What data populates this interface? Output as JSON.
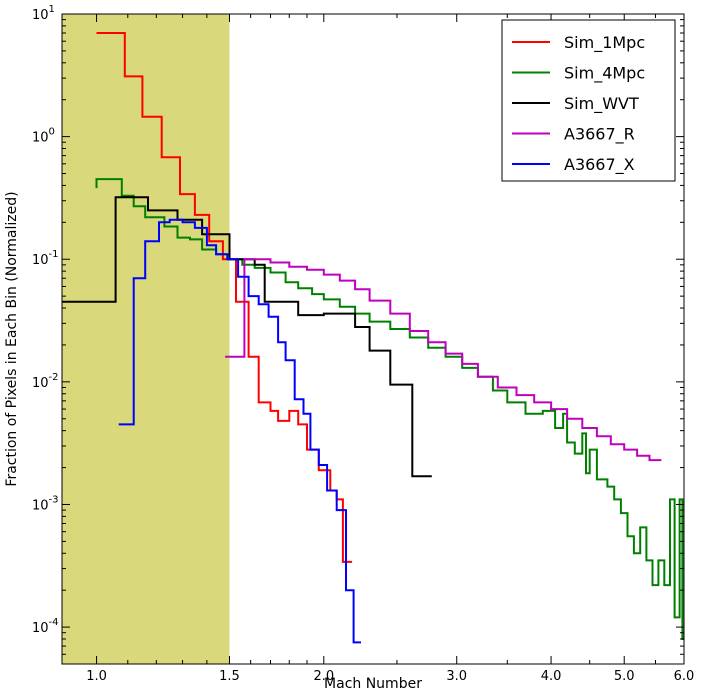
{
  "chart_data": {
    "type": "line",
    "step": true,
    "xscale": "log",
    "yscale": "log",
    "xlabel": "Mach Number",
    "ylabel": "Fraction of Pixels in Each Bin (Normalized)",
    "xlim": [
      0.9,
      6.0
    ],
    "ylim": [
      5e-05,
      10
    ],
    "xticks": [
      {
        "value": 1.0,
        "label": "1.0"
      },
      {
        "value": 1.5,
        "label": "1.5"
      },
      {
        "value": 2.0,
        "label": "2.0"
      },
      {
        "value": 3.0,
        "label": "3.0"
      },
      {
        "value": 4.0,
        "label": "4.0"
      },
      {
        "value": 5.0,
        "label": "5.0"
      },
      {
        "value": 6.0,
        "label": "6.0"
      }
    ],
    "yticks": [
      {
        "value": 10,
        "base": "10",
        "exp": "1"
      },
      {
        "value": 1,
        "base": "10",
        "exp": "0"
      },
      {
        "value": 0.1,
        "base": "10",
        "exp": "-1"
      },
      {
        "value": 0.01,
        "base": "10",
        "exp": "-2"
      },
      {
        "value": 0.001,
        "base": "10",
        "exp": "-3"
      },
      {
        "value": 0.0001,
        "base": "10",
        "exp": "-4"
      }
    ],
    "shaded_region": {
      "x_from": 0.9,
      "x_to": 1.5,
      "color": "#d9d87a"
    },
    "legend_position": "top-right",
    "series": [
      {
        "name": "Sim_1Mpc",
        "color": "#ff0000",
        "points": [
          [
            1.0,
            7.0
          ],
          [
            1.09,
            7.0
          ],
          [
            1.09,
            3.1
          ],
          [
            1.15,
            3.1
          ],
          [
            1.15,
            1.45
          ],
          [
            1.22,
            1.45
          ],
          [
            1.22,
            0.68
          ],
          [
            1.29,
            0.68
          ],
          [
            1.29,
            0.34
          ],
          [
            1.35,
            0.34
          ],
          [
            1.35,
            0.23
          ],
          [
            1.41,
            0.23
          ],
          [
            1.41,
            0.14
          ],
          [
            1.47,
            0.14
          ],
          [
            1.47,
            0.1
          ],
          [
            1.53,
            0.1
          ],
          [
            1.53,
            0.045
          ],
          [
            1.59,
            0.045
          ],
          [
            1.59,
            0.016
          ],
          [
            1.64,
            0.016
          ],
          [
            1.64,
            0.0068
          ],
          [
            1.7,
            0.0068
          ],
          [
            1.7,
            0.0058
          ],
          [
            1.74,
            0.0058
          ],
          [
            1.74,
            0.0048
          ],
          [
            1.8,
            0.0048
          ],
          [
            1.8,
            0.0058
          ],
          [
            1.85,
            0.0058
          ],
          [
            1.85,
            0.0045
          ],
          [
            1.9,
            0.0045
          ],
          [
            1.9,
            0.0028
          ],
          [
            1.97,
            0.0028
          ],
          [
            1.97,
            0.0019
          ],
          [
            2.04,
            0.0019
          ],
          [
            2.04,
            0.0013
          ],
          [
            2.08,
            0.0013
          ],
          [
            2.08,
            0.0011
          ],
          [
            2.12,
            0.0011
          ],
          [
            2.12,
            0.00034
          ],
          [
            2.18,
            0.00034
          ]
        ]
      },
      {
        "name": "Sim_4Mpc",
        "color": "#008000",
        "points": [
          [
            1.0,
            0.38
          ],
          [
            1.0,
            0.45
          ],
          [
            1.08,
            0.45
          ],
          [
            1.08,
            0.33
          ],
          [
            1.12,
            0.33
          ],
          [
            1.12,
            0.27
          ],
          [
            1.16,
            0.27
          ],
          [
            1.16,
            0.22
          ],
          [
            1.23,
            0.22
          ],
          [
            1.23,
            0.185
          ],
          [
            1.28,
            0.185
          ],
          [
            1.28,
            0.15
          ],
          [
            1.33,
            0.15
          ],
          [
            1.33,
            0.145
          ],
          [
            1.38,
            0.145
          ],
          [
            1.38,
            0.12
          ],
          [
            1.44,
            0.12
          ],
          [
            1.44,
            0.11
          ],
          [
            1.5,
            0.11
          ],
          [
            1.5,
            0.1
          ],
          [
            1.56,
            0.1
          ],
          [
            1.56,
            0.09
          ],
          [
            1.62,
            0.09
          ],
          [
            1.62,
            0.085
          ],
          [
            1.7,
            0.085
          ],
          [
            1.7,
            0.078
          ],
          [
            1.78,
            0.078
          ],
          [
            1.78,
            0.065
          ],
          [
            1.85,
            0.065
          ],
          [
            1.85,
            0.058
          ],
          [
            1.93,
            0.058
          ],
          [
            1.93,
            0.052
          ],
          [
            2.0,
            0.052
          ],
          [
            2.0,
            0.047
          ],
          [
            2.1,
            0.047
          ],
          [
            2.1,
            0.041
          ],
          [
            2.2,
            0.041
          ],
          [
            2.2,
            0.036
          ],
          [
            2.3,
            0.036
          ],
          [
            2.3,
            0.031
          ],
          [
            2.45,
            0.031
          ],
          [
            2.45,
            0.027
          ],
          [
            2.6,
            0.027
          ],
          [
            2.6,
            0.023
          ],
          [
            2.75,
            0.023
          ],
          [
            2.75,
            0.019
          ],
          [
            2.9,
            0.019
          ],
          [
            2.9,
            0.016
          ],
          [
            3.05,
            0.016
          ],
          [
            3.05,
            0.013
          ],
          [
            3.2,
            0.013
          ],
          [
            3.2,
            0.011
          ],
          [
            3.35,
            0.011
          ],
          [
            3.35,
            0.0085
          ],
          [
            3.5,
            0.0085
          ],
          [
            3.5,
            0.0068
          ],
          [
            3.7,
            0.0068
          ],
          [
            3.7,
            0.0055
          ],
          [
            3.9,
            0.0055
          ],
          [
            3.9,
            0.0058
          ],
          [
            4.05,
            0.0058
          ],
          [
            4.05,
            0.0042
          ],
          [
            4.15,
            0.0042
          ],
          [
            4.15,
            0.0055
          ],
          [
            4.2,
            0.0055
          ],
          [
            4.2,
            0.0032
          ],
          [
            4.3,
            0.0032
          ],
          [
            4.3,
            0.0026
          ],
          [
            4.4,
            0.0026
          ],
          [
            4.4,
            0.0038
          ],
          [
            4.45,
            0.0038
          ],
          [
            4.45,
            0.0018
          ],
          [
            4.5,
            0.0018
          ],
          [
            4.5,
            0.0028
          ],
          [
            4.6,
            0.0028
          ],
          [
            4.6,
            0.0016
          ],
          [
            4.75,
            0.0016
          ],
          [
            4.75,
            0.0014
          ],
          [
            4.85,
            0.0014
          ],
          [
            4.85,
            0.0011
          ],
          [
            4.95,
            0.0011
          ],
          [
            4.95,
            0.00085
          ],
          [
            5.05,
            0.00085
          ],
          [
            5.05,
            0.00055
          ],
          [
            5.15,
            0.00055
          ],
          [
            5.15,
            0.0004
          ],
          [
            5.25,
            0.0004
          ],
          [
            5.25,
            0.00065
          ],
          [
            5.35,
            0.00065
          ],
          [
            5.35,
            0.00035
          ],
          [
            5.45,
            0.00035
          ],
          [
            5.45,
            0.00022
          ],
          [
            5.55,
            0.00022
          ],
          [
            5.55,
            0.00035
          ],
          [
            5.65,
            0.00035
          ],
          [
            5.65,
            0.00022
          ],
          [
            5.75,
            0.00022
          ],
          [
            5.75,
            0.0011
          ],
          [
            5.83,
            0.0011
          ],
          [
            5.83,
            0.00012
          ],
          [
            5.92,
            0.00012
          ],
          [
            5.92,
            0.0011
          ],
          [
            5.97,
            0.0011
          ],
          [
            5.97,
            8e-05
          ],
          [
            6.0,
            8e-05
          ]
        ]
      },
      {
        "name": "Sim_WVT",
        "color": "#000000",
        "points": [
          [
            0.9,
            0.045
          ],
          [
            1.06,
            0.045
          ],
          [
            1.06,
            0.32
          ],
          [
            1.17,
            0.32
          ],
          [
            1.17,
            0.25
          ],
          [
            1.28,
            0.25
          ],
          [
            1.28,
            0.21
          ],
          [
            1.38,
            0.21
          ],
          [
            1.38,
            0.16
          ],
          [
            1.5,
            0.16
          ],
          [
            1.5,
            0.1
          ],
          [
            1.62,
            0.1
          ],
          [
            1.62,
            0.09
          ],
          [
            1.67,
            0.09
          ],
          [
            1.67,
            0.045
          ],
          [
            1.76,
            0.045
          ],
          [
            1.76,
            0.045
          ],
          [
            1.85,
            0.045
          ],
          [
            1.85,
            0.035
          ],
          [
            2.0,
            0.035
          ],
          [
            2.0,
            0.036
          ],
          [
            2.2,
            0.036
          ],
          [
            2.2,
            0.028
          ],
          [
            2.3,
            0.028
          ],
          [
            2.3,
            0.018
          ],
          [
            2.45,
            0.018
          ],
          [
            2.45,
            0.0095
          ],
          [
            2.62,
            0.0095
          ],
          [
            2.62,
            0.0017
          ],
          [
            2.78,
            0.0017
          ]
        ]
      },
      {
        "name": "A3667_R",
        "color": "#bf00bf",
        "points": [
          [
            1.48,
            0.016
          ],
          [
            1.57,
            0.016
          ],
          [
            1.57,
            0.1
          ],
          [
            1.7,
            0.1
          ],
          [
            1.7,
            0.094
          ],
          [
            1.8,
            0.094
          ],
          [
            1.8,
            0.087
          ],
          [
            1.9,
            0.087
          ],
          [
            1.9,
            0.082
          ],
          [
            2.0,
            0.082
          ],
          [
            2.0,
            0.075
          ],
          [
            2.1,
            0.075
          ],
          [
            2.1,
            0.067
          ],
          [
            2.2,
            0.067
          ],
          [
            2.2,
            0.057
          ],
          [
            2.3,
            0.057
          ],
          [
            2.3,
            0.046
          ],
          [
            2.45,
            0.046
          ],
          [
            2.45,
            0.036
          ],
          [
            2.6,
            0.036
          ],
          [
            2.6,
            0.026
          ],
          [
            2.75,
            0.026
          ],
          [
            2.75,
            0.021
          ],
          [
            2.9,
            0.021
          ],
          [
            2.9,
            0.017
          ],
          [
            3.05,
            0.017
          ],
          [
            3.05,
            0.014
          ],
          [
            3.2,
            0.014
          ],
          [
            3.2,
            0.011
          ],
          [
            3.4,
            0.011
          ],
          [
            3.4,
            0.009
          ],
          [
            3.6,
            0.009
          ],
          [
            3.6,
            0.0078
          ],
          [
            3.8,
            0.0078
          ],
          [
            3.8,
            0.0068
          ],
          [
            4.0,
            0.0068
          ],
          [
            4.0,
            0.006
          ],
          [
            4.2,
            0.006
          ],
          [
            4.2,
            0.005
          ],
          [
            4.4,
            0.005
          ],
          [
            4.4,
            0.0042
          ],
          [
            4.6,
            0.0042
          ],
          [
            4.6,
            0.0036
          ],
          [
            4.8,
            0.0036
          ],
          [
            4.8,
            0.0031
          ],
          [
            5.0,
            0.0031
          ],
          [
            5.0,
            0.0028
          ],
          [
            5.2,
            0.0028
          ],
          [
            5.2,
            0.0025
          ],
          [
            5.4,
            0.0025
          ],
          [
            5.4,
            0.0023
          ],
          [
            5.6,
            0.0023
          ]
        ]
      },
      {
        "name": "A3667_X",
        "color": "#0000ff",
        "points": [
          [
            1.07,
            0.0045
          ],
          [
            1.12,
            0.0045
          ],
          [
            1.12,
            0.07
          ],
          [
            1.16,
            0.07
          ],
          [
            1.16,
            0.14
          ],
          [
            1.21,
            0.14
          ],
          [
            1.21,
            0.2
          ],
          [
            1.25,
            0.2
          ],
          [
            1.25,
            0.21
          ],
          [
            1.3,
            0.21
          ],
          [
            1.3,
            0.2
          ],
          [
            1.35,
            0.2
          ],
          [
            1.35,
            0.18
          ],
          [
            1.4,
            0.18
          ],
          [
            1.4,
            0.13
          ],
          [
            1.44,
            0.13
          ],
          [
            1.44,
            0.11
          ],
          [
            1.49,
            0.11
          ],
          [
            1.49,
            0.1
          ],
          [
            1.54,
            0.1
          ],
          [
            1.54,
            0.072
          ],
          [
            1.59,
            0.072
          ],
          [
            1.59,
            0.05
          ],
          [
            1.64,
            0.05
          ],
          [
            1.64,
            0.043
          ],
          [
            1.69,
            0.043
          ],
          [
            1.69,
            0.034
          ],
          [
            1.74,
            0.034
          ],
          [
            1.74,
            0.021
          ],
          [
            1.78,
            0.021
          ],
          [
            1.78,
            0.015
          ],
          [
            1.83,
            0.015
          ],
          [
            1.83,
            0.0072
          ],
          [
            1.88,
            0.0072
          ],
          [
            1.88,
            0.0055
          ],
          [
            1.92,
            0.0055
          ],
          [
            1.92,
            0.0028
          ],
          [
            1.97,
            0.0028
          ],
          [
            1.97,
            0.0021
          ],
          [
            2.02,
            0.0021
          ],
          [
            2.02,
            0.0013
          ],
          [
            2.08,
            0.0013
          ],
          [
            2.08,
            0.0009
          ],
          [
            2.14,
            0.0009
          ],
          [
            2.14,
            0.0002
          ],
          [
            2.19,
            0.0002
          ],
          [
            2.19,
            7.5e-05
          ],
          [
            2.24,
            7.5e-05
          ]
        ]
      }
    ]
  }
}
